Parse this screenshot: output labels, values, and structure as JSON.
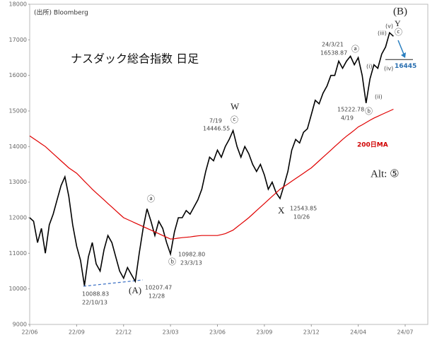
{
  "chart_data": {
    "type": "line",
    "title": "ナスダック総合指数 日足",
    "source": "(出所) Bloomberg",
    "categories": [
      "22/06",
      null,
      null,
      null,
      null,
      null,
      null,
      null,
      null,
      null,
      null,
      null,
      "22/09",
      null,
      null,
      null,
      null,
      null,
      null,
      null,
      null,
      null,
      null,
      null,
      "22/12",
      null,
      null,
      null,
      null,
      null,
      null,
      null,
      null,
      null,
      null,
      null,
      "23/03",
      null,
      null,
      null,
      null,
      null,
      null,
      null,
      null,
      null,
      null,
      null,
      "23/06",
      null,
      null,
      null,
      null,
      null,
      null,
      null,
      null,
      null,
      null,
      null,
      "23/09",
      null,
      null,
      null,
      null,
      null,
      null,
      null,
      null,
      null,
      null,
      null,
      "23/12",
      null,
      null,
      null,
      null,
      null,
      null,
      null,
      null,
      null,
      null,
      null,
      "24/04",
      null,
      null,
      null,
      null,
      null,
      null,
      null,
      null,
      null,
      null,
      null,
      "24/07"
    ],
    "series": [
      {
        "name": "ナスダック総合指数",
        "color": "#000000",
        "values": [
          12000,
          11900,
          11300,
          11700,
          11000,
          11800,
          12100,
          12500,
          12900,
          13150,
          12600,
          11800,
          11200,
          10800,
          10090,
          10900,
          11300,
          10700,
          10500,
          11100,
          11500,
          11300,
          10900,
          10500,
          10300,
          10600,
          10400,
          10210,
          11000,
          11700,
          12250,
          11900,
          11500,
          11900,
          11700,
          11300,
          10980,
          11600,
          12000,
          12000,
          12200,
          12100,
          12300,
          12500,
          12800,
          13300,
          13700,
          13600,
          13900,
          13700,
          14000,
          14200,
          14450,
          14000,
          13700,
          14000,
          13800,
          13500,
          13300,
          13500,
          13200,
          12800,
          13000,
          12700,
          12540,
          12900,
          13300,
          13900,
          14200,
          14100,
          14400,
          14500,
          14900,
          15300,
          15200,
          15500,
          15700,
          16000,
          16000,
          16400,
          16200,
          16400,
          16540,
          16300,
          16500,
          16000,
          15220,
          15900,
          16300,
          16200,
          16600,
          16800,
          17200,
          17100,
          null,
          null,
          null
        ]
      },
      {
        "name": "200日MA",
        "color": "#e00000",
        "values": [
          14300,
          14225,
          14150,
          14075,
          14000,
          13900,
          13800,
          13700,
          13600,
          13500,
          13400,
          13325,
          13250,
          13138,
          13025,
          12913,
          12800,
          12700,
          12600,
          12500,
          12400,
          12300,
          12200,
          12100,
          12000,
          11950,
          11900,
          11850,
          11800,
          11750,
          11700,
          11650,
          11600,
          11550,
          11500,
          11450,
          11400,
          11410,
          11425,
          11440,
          11450,
          11460,
          11475,
          11490,
          11500,
          11500,
          11500,
          11500,
          11500,
          11525,
          11550,
          11600,
          11650,
          11740,
          11825,
          11910,
          12000,
          12100,
          12200,
          12300,
          12400,
          12500,
          12600,
          12700,
          12800,
          12875,
          12950,
          13025,
          13100,
          13175,
          13250,
          13325,
          13400,
          13500,
          13600,
          13700,
          13800,
          13900,
          14000,
          14100,
          14200,
          14290,
          14375,
          14460,
          14550,
          14610,
          14675,
          14740,
          14800,
          14850,
          14900,
          14950,
          15000,
          15050,
          null,
          null,
          null
        ]
      }
    ],
    "ylim": [
      9000,
      18000
    ],
    "yticks": [
      9000,
      10000,
      11000,
      12000,
      13000,
      14000,
      15000,
      16000,
      17000,
      18000
    ],
    "hline": {
      "value": 16445,
      "label": "16445"
    },
    "annotations": [
      "W",
      "ⓒ",
      "7/19",
      "14446.55",
      "ⓐ",
      "ⓑ",
      "(A)",
      "10088.83",
      "22/10/13",
      "10207.47",
      "12/28",
      "10982.80",
      "23/3/13",
      "X",
      "12543.85",
      "10/26",
      "24/3/21",
      "16538.87",
      "ⓐ",
      "15222.78",
      "4/19",
      "ⓑ",
      "(B)",
      "Y",
      "ⓒ",
      "(v)",
      "(iii)",
      "(iv)",
      "(i)",
      "(ii)",
      "200日MA",
      "Alt: ⑤"
    ]
  }
}
